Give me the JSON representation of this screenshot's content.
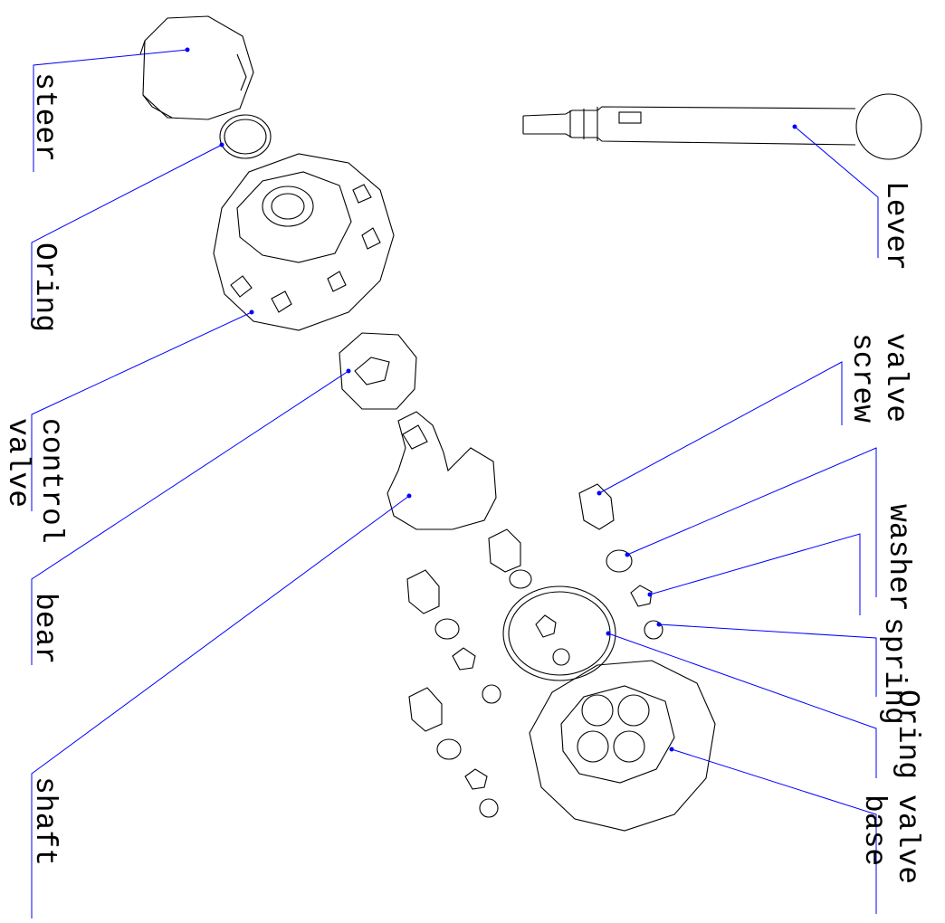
{
  "labels": [
    {
      "lines": [
        "steer"
      ]
    },
    {
      "lines": [
        "Oring"
      ]
    },
    {
      "lines": [
        "control",
        "valve"
      ]
    },
    {
      "lines": [
        "bear"
      ]
    },
    {
      "lines": [
        "shaft"
      ]
    },
    {
      "lines": [
        "Lever"
      ]
    },
    {
      "lines": [
        "valve",
        "screw"
      ]
    },
    {
      "lines": [
        "washer"
      ]
    },
    {
      "lines": [
        "spring"
      ]
    },
    {
      "lines": [
        "Oring"
      ]
    },
    {
      "lines": [
        "valve",
        "base"
      ]
    }
  ]
}
